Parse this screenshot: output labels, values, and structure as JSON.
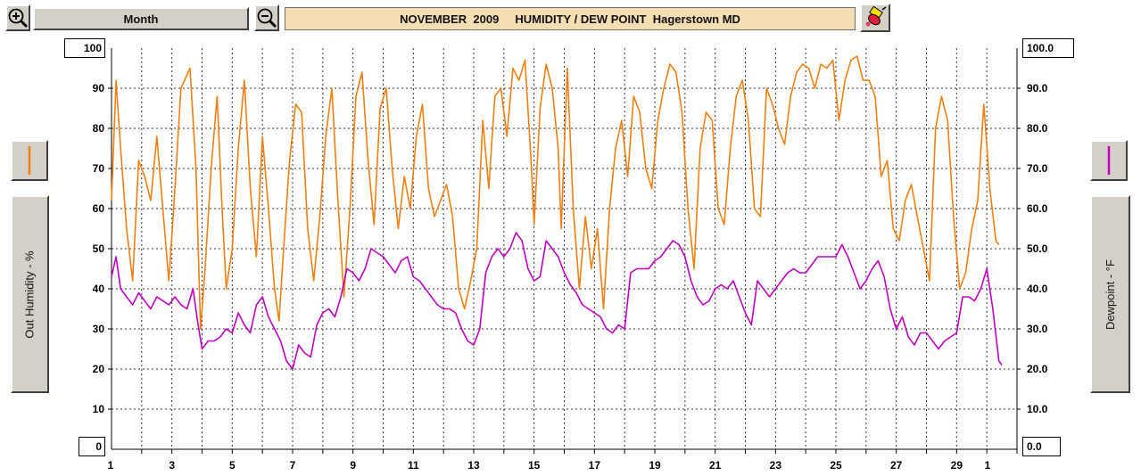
{
  "toolbar": {
    "period_label": "Month",
    "title": "NOVEMBER  2009     HUMIDITY / DEW POINT  Hagerstown MD"
  },
  "left_axis": {
    "label": "Out Humidity - %",
    "max_label": "100",
    "min_label": "0",
    "color": "#f08010"
  },
  "right_axis": {
    "label": "Dewpoint - °F",
    "max_label": "100.0",
    "min_label": "0.0",
    "color": "#c000c0"
  },
  "chart_data": {
    "type": "line",
    "xlabel": "",
    "x_ticks": [
      "1",
      "3",
      "5",
      "7",
      "9",
      "11",
      "13",
      "15",
      "17",
      "19",
      "21",
      "23",
      "25",
      "27",
      "29",
      "1"
    ],
    "ylim": [
      0,
      100
    ],
    "y_ticks_left": [
      "90",
      "80",
      "70",
      "60",
      "50",
      "40",
      "30",
      "20",
      "10"
    ],
    "y_ticks_right": [
      "90.0",
      "80.0",
      "70.0",
      "60.0",
      "50.0",
      "40.0",
      "30.0",
      "20.0",
      "10.0"
    ],
    "y2lim": [
      0,
      100
    ],
    "grid": true,
    "series": [
      {
        "name": "Out Humidity",
        "axis": "left",
        "color": "#f08010",
        "points": [
          [
            1.0,
            62
          ],
          [
            1.15,
            92
          ],
          [
            1.3,
            75
          ],
          [
            1.5,
            55
          ],
          [
            1.7,
            42
          ],
          [
            1.9,
            72
          ],
          [
            2.1,
            68
          ],
          [
            2.3,
            62
          ],
          [
            2.5,
            78
          ],
          [
            2.7,
            60
          ],
          [
            2.9,
            42
          ],
          [
            3.1,
            65
          ],
          [
            3.3,
            90
          ],
          [
            3.6,
            95
          ],
          [
            3.8,
            70
          ],
          [
            3.95,
            30
          ],
          [
            4.1,
            45
          ],
          [
            4.3,
            70
          ],
          [
            4.5,
            88
          ],
          [
            4.65,
            62
          ],
          [
            4.8,
            40
          ],
          [
            5.0,
            50
          ],
          [
            5.2,
            75
          ],
          [
            5.4,
            92
          ],
          [
            5.6,
            65
          ],
          [
            5.8,
            48
          ],
          [
            6.0,
            78
          ],
          [
            6.2,
            60
          ],
          [
            6.4,
            40
          ],
          [
            6.55,
            32
          ],
          [
            6.7,
            50
          ],
          [
            6.9,
            72
          ],
          [
            7.1,
            86
          ],
          [
            7.3,
            84
          ],
          [
            7.5,
            55
          ],
          [
            7.7,
            42
          ],
          [
            7.9,
            58
          ],
          [
            8.1,
            78
          ],
          [
            8.3,
            90
          ],
          [
            8.5,
            62
          ],
          [
            8.7,
            38
          ],
          [
            8.9,
            60
          ],
          [
            9.1,
            88
          ],
          [
            9.3,
            94
          ],
          [
            9.5,
            72
          ],
          [
            9.7,
            56
          ],
          [
            9.9,
            85
          ],
          [
            10.1,
            90
          ],
          [
            10.3,
            70
          ],
          [
            10.5,
            55
          ],
          [
            10.7,
            68
          ],
          [
            10.9,
            60
          ],
          [
            11.1,
            78
          ],
          [
            11.3,
            86
          ],
          [
            11.5,
            65
          ],
          [
            11.7,
            58
          ],
          [
            11.9,
            62
          ],
          [
            12.1,
            66
          ],
          [
            12.3,
            58
          ],
          [
            12.5,
            40
          ],
          [
            12.7,
            35
          ],
          [
            12.9,
            42
          ],
          [
            13.1,
            50
          ],
          [
            13.3,
            82
          ],
          [
            13.5,
            65
          ],
          [
            13.7,
            88
          ],
          [
            13.9,
            90
          ],
          [
            14.1,
            78
          ],
          [
            14.3,
            95
          ],
          [
            14.5,
            92
          ],
          [
            14.7,
            97
          ],
          [
            14.9,
            72
          ],
          [
            15.0,
            56
          ],
          [
            15.2,
            85
          ],
          [
            15.4,
            96
          ],
          [
            15.6,
            90
          ],
          [
            15.8,
            75
          ],
          [
            15.9,
            55
          ],
          [
            16.1,
            95
          ],
          [
            16.3,
            60
          ],
          [
            16.5,
            40
          ],
          [
            16.7,
            58
          ],
          [
            16.9,
            45
          ],
          [
            17.1,
            55
          ],
          [
            17.3,
            35
          ],
          [
            17.5,
            60
          ],
          [
            17.7,
            75
          ],
          [
            17.9,
            82
          ],
          [
            18.1,
            68
          ],
          [
            18.3,
            88
          ],
          [
            18.5,
            84
          ],
          [
            18.7,
            70
          ],
          [
            18.9,
            65
          ],
          [
            19.1,
            82
          ],
          [
            19.3,
            90
          ],
          [
            19.5,
            96
          ],
          [
            19.7,
            94
          ],
          [
            19.9,
            84
          ],
          [
            20.1,
            60
          ],
          [
            20.3,
            45
          ],
          [
            20.5,
            75
          ],
          [
            20.7,
            84
          ],
          [
            20.9,
            82
          ],
          [
            21.1,
            60
          ],
          [
            21.3,
            56
          ],
          [
            21.5,
            75
          ],
          [
            21.7,
            88
          ],
          [
            21.9,
            92
          ],
          [
            22.1,
            82
          ],
          [
            22.3,
            60
          ],
          [
            22.5,
            58
          ],
          [
            22.7,
            90
          ],
          [
            22.9,
            86
          ],
          [
            23.1,
            80
          ],
          [
            23.3,
            76
          ],
          [
            23.5,
            88
          ],
          [
            23.7,
            94
          ],
          [
            23.9,
            96
          ],
          [
            24.1,
            95
          ],
          [
            24.3,
            90
          ],
          [
            24.5,
            96
          ],
          [
            24.7,
            95
          ],
          [
            24.9,
            97
          ],
          [
            25.1,
            82
          ],
          [
            25.3,
            92
          ],
          [
            25.5,
            97
          ],
          [
            25.7,
            98
          ],
          [
            25.9,
            92
          ],
          [
            26.1,
            92
          ],
          [
            26.3,
            88
          ],
          [
            26.5,
            68
          ],
          [
            26.7,
            72
          ],
          [
            26.9,
            55
          ],
          [
            27.1,
            52
          ],
          [
            27.3,
            62
          ],
          [
            27.5,
            66
          ],
          [
            27.7,
            58
          ],
          [
            27.9,
            50
          ],
          [
            28.1,
            42
          ],
          [
            28.3,
            80
          ],
          [
            28.5,
            88
          ],
          [
            28.7,
            82
          ],
          [
            28.9,
            58
          ],
          [
            29.1,
            40
          ],
          [
            29.3,
            44
          ],
          [
            29.5,
            55
          ],
          [
            29.7,
            62
          ],
          [
            29.9,
            86
          ],
          [
            30.1,
            65
          ],
          [
            30.3,
            52
          ],
          [
            30.4,
            51
          ]
        ]
      },
      {
        "name": "Dewpoint",
        "axis": "right",
        "color": "#c000c0",
        "points": [
          [
            1.0,
            43
          ],
          [
            1.15,
            48
          ],
          [
            1.3,
            40
          ],
          [
            1.5,
            38
          ],
          [
            1.7,
            36
          ],
          [
            1.9,
            39
          ],
          [
            2.1,
            37
          ],
          [
            2.3,
            35
          ],
          [
            2.5,
            38
          ],
          [
            2.7,
            37
          ],
          [
            2.9,
            36
          ],
          [
            3.1,
            38
          ],
          [
            3.3,
            36
          ],
          [
            3.5,
            35
          ],
          [
            3.7,
            40
          ],
          [
            3.85,
            32
          ],
          [
            4.0,
            25
          ],
          [
            4.2,
            27
          ],
          [
            4.4,
            27
          ],
          [
            4.6,
            28
          ],
          [
            4.8,
            30
          ],
          [
            5.0,
            29
          ],
          [
            5.2,
            34
          ],
          [
            5.4,
            31
          ],
          [
            5.6,
            29
          ],
          [
            5.8,
            36
          ],
          [
            6.0,
            38
          ],
          [
            6.2,
            33
          ],
          [
            6.4,
            30
          ],
          [
            6.6,
            27
          ],
          [
            6.8,
            22
          ],
          [
            7.0,
            20
          ],
          [
            7.2,
            26
          ],
          [
            7.4,
            24
          ],
          [
            7.6,
            23
          ],
          [
            7.8,
            31
          ],
          [
            8.0,
            34
          ],
          [
            8.2,
            35
          ],
          [
            8.4,
            33
          ],
          [
            8.6,
            38
          ],
          [
            8.8,
            45
          ],
          [
            9.0,
            44
          ],
          [
            9.2,
            42
          ],
          [
            9.4,
            45
          ],
          [
            9.6,
            50
          ],
          [
            9.8,
            49
          ],
          [
            10.0,
            48
          ],
          [
            10.2,
            46
          ],
          [
            10.4,
            44
          ],
          [
            10.6,
            47
          ],
          [
            10.8,
            48
          ],
          [
            11.0,
            43
          ],
          [
            11.2,
            42
          ],
          [
            11.4,
            40
          ],
          [
            11.6,
            38
          ],
          [
            11.8,
            36
          ],
          [
            12.0,
            35
          ],
          [
            12.2,
            35
          ],
          [
            12.4,
            34
          ],
          [
            12.6,
            30
          ],
          [
            12.8,
            27
          ],
          [
            13.0,
            26
          ],
          [
            13.2,
            30
          ],
          [
            13.4,
            44
          ],
          [
            13.6,
            48
          ],
          [
            13.8,
            50
          ],
          [
            14.0,
            48
          ],
          [
            14.2,
            50
          ],
          [
            14.4,
            54
          ],
          [
            14.6,
            52
          ],
          [
            14.8,
            45
          ],
          [
            15.0,
            42
          ],
          [
            15.2,
            43
          ],
          [
            15.4,
            52
          ],
          [
            15.6,
            50
          ],
          [
            15.8,
            48
          ],
          [
            16.0,
            44
          ],
          [
            16.2,
            41
          ],
          [
            16.4,
            39
          ],
          [
            16.6,
            36
          ],
          [
            16.8,
            35
          ],
          [
            17.0,
            34
          ],
          [
            17.2,
            33
          ],
          [
            17.4,
            30
          ],
          [
            17.6,
            29
          ],
          [
            17.8,
            31
          ],
          [
            18.0,
            30
          ],
          [
            18.2,
            44
          ],
          [
            18.4,
            45
          ],
          [
            18.6,
            45
          ],
          [
            18.8,
            45
          ],
          [
            19.0,
            47
          ],
          [
            19.2,
            48
          ],
          [
            19.4,
            50
          ],
          [
            19.6,
            52
          ],
          [
            19.8,
            51
          ],
          [
            20.0,
            48
          ],
          [
            20.2,
            42
          ],
          [
            20.4,
            38
          ],
          [
            20.6,
            36
          ],
          [
            20.8,
            37
          ],
          [
            21.0,
            40
          ],
          [
            21.2,
            41
          ],
          [
            21.4,
            40
          ],
          [
            21.6,
            42
          ],
          [
            21.8,
            38
          ],
          [
            22.0,
            34
          ],
          [
            22.2,
            31
          ],
          [
            22.4,
            42
          ],
          [
            22.6,
            40
          ],
          [
            22.8,
            38
          ],
          [
            23.0,
            40
          ],
          [
            23.2,
            42
          ],
          [
            23.4,
            44
          ],
          [
            23.6,
            45
          ],
          [
            23.8,
            44
          ],
          [
            24.0,
            44
          ],
          [
            24.2,
            46
          ],
          [
            24.4,
            48
          ],
          [
            24.6,
            48
          ],
          [
            24.8,
            48
          ],
          [
            25.0,
            48
          ],
          [
            25.2,
            51
          ],
          [
            25.4,
            48
          ],
          [
            25.6,
            44
          ],
          [
            25.8,
            40
          ],
          [
            26.0,
            42
          ],
          [
            26.2,
            45
          ],
          [
            26.4,
            47
          ],
          [
            26.6,
            43
          ],
          [
            26.8,
            35
          ],
          [
            27.0,
            30
          ],
          [
            27.2,
            33
          ],
          [
            27.4,
            28
          ],
          [
            27.6,
            26
          ],
          [
            27.8,
            29
          ],
          [
            28.0,
            29
          ],
          [
            28.2,
            27
          ],
          [
            28.4,
            25
          ],
          [
            28.6,
            27
          ],
          [
            28.8,
            28
          ],
          [
            29.0,
            29
          ],
          [
            29.2,
            38
          ],
          [
            29.4,
            38
          ],
          [
            29.6,
            37
          ],
          [
            29.8,
            40
          ],
          [
            30.0,
            45
          ],
          [
            30.2,
            35
          ],
          [
            30.4,
            22
          ],
          [
            30.5,
            21
          ]
        ]
      }
    ]
  }
}
